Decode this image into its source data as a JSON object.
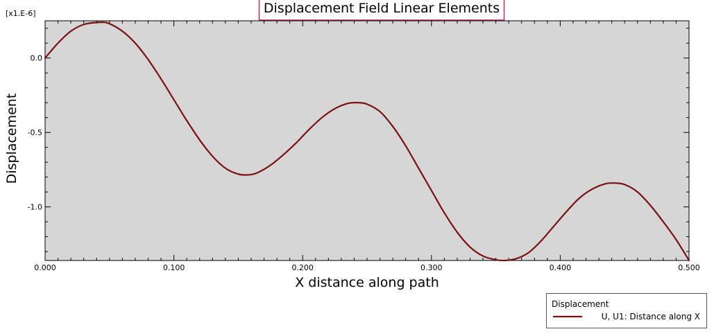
{
  "chart_data": {
    "type": "line",
    "title": "Displacement Field Linear Elements",
    "xlabel": "X distance along path",
    "ylabel": "Displacement",
    "y_multiplier": "[x1.E-6]",
    "xlim": [
      0.0,
      0.5
    ],
    "ylim": [
      -1.36,
      0.25
    ],
    "x_ticks": [
      "0.000",
      "0.100",
      "0.200",
      "0.300",
      "0.400",
      "0.500"
    ],
    "x_tick_values": [
      0.0,
      0.1,
      0.2,
      0.3,
      0.4,
      0.5
    ],
    "y_ticks": [
      "0.0",
      "-0.5",
      "-1.0"
    ],
    "y_tick_values": [
      0.0,
      -0.5,
      -1.0
    ],
    "grid": false,
    "legend_title": "Displacement",
    "legend_position": "bottom-right",
    "plot_background": "#d6d6d6",
    "series": [
      {
        "name": "U, U1: Distance along X",
        "color": "#7a0f0f",
        "x": [
          0.0,
          0.01,
          0.02,
          0.03,
          0.043,
          0.05,
          0.06,
          0.07,
          0.08,
          0.09,
          0.1,
          0.11,
          0.12,
          0.13,
          0.14,
          0.15,
          0.158,
          0.165,
          0.175,
          0.185,
          0.195,
          0.205,
          0.215,
          0.225,
          0.235,
          0.243,
          0.25,
          0.26,
          0.27,
          0.28,
          0.29,
          0.3,
          0.31,
          0.32,
          0.33,
          0.34,
          0.35,
          0.357,
          0.365,
          0.375,
          0.385,
          0.395,
          0.405,
          0.415,
          0.425,
          0.435,
          0.442,
          0.45,
          0.46,
          0.47,
          0.48,
          0.49,
          0.5
        ],
        "y": [
          0.0,
          0.1,
          0.18,
          0.225,
          0.24,
          0.23,
          0.18,
          0.1,
          -0.01,
          -0.14,
          -0.28,
          -0.42,
          -0.55,
          -0.66,
          -0.74,
          -0.78,
          -0.785,
          -0.77,
          -0.72,
          -0.65,
          -0.57,
          -0.48,
          -0.4,
          -0.34,
          -0.305,
          -0.3,
          -0.31,
          -0.36,
          -0.46,
          -0.59,
          -0.74,
          -0.89,
          -1.04,
          -1.17,
          -1.27,
          -1.33,
          -1.355,
          -1.36,
          -1.35,
          -1.31,
          -1.23,
          -1.13,
          -1.03,
          -0.94,
          -0.88,
          -0.845,
          -0.84,
          -0.85,
          -0.9,
          -0.99,
          -1.1,
          -1.22,
          -1.36
        ]
      }
    ]
  }
}
